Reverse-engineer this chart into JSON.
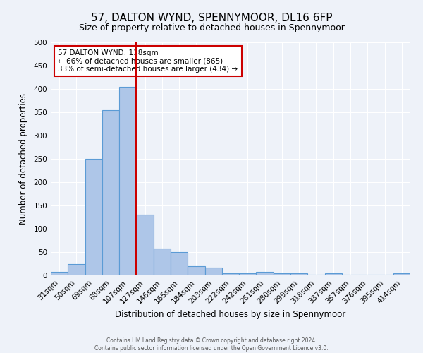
{
  "title": "57, DALTON WYND, SPENNYMOOR, DL16 6FP",
  "subtitle": "Size of property relative to detached houses in Spennymoor",
  "xlabel": "Distribution of detached houses by size in Spennymoor",
  "ylabel": "Number of detached properties",
  "categories": [
    "31sqm",
    "50sqm",
    "69sqm",
    "88sqm",
    "107sqm",
    "127sqm",
    "146sqm",
    "165sqm",
    "184sqm",
    "203sqm",
    "222sqm",
    "242sqm",
    "261sqm",
    "280sqm",
    "299sqm",
    "318sqm",
    "337sqm",
    "357sqm",
    "376sqm",
    "395sqm",
    "414sqm"
  ],
  "values": [
    7,
    25,
    250,
    355,
    405,
    130,
    58,
    50,
    20,
    16,
    5,
    4,
    7,
    5,
    5,
    1,
    4,
    1,
    1,
    1,
    4
  ],
  "bar_color": "#aec6e8",
  "bar_edge_color": "#5b9bd5",
  "vline_x_index": 4.5,
  "vline_color": "#cc0000",
  "ylim": [
    0,
    500
  ],
  "yticks": [
    0,
    50,
    100,
    150,
    200,
    250,
    300,
    350,
    400,
    450,
    500
  ],
  "annotation_text": "57 DALTON WYND: 118sqm\n← 66% of detached houses are smaller (865)\n33% of semi-detached houses are larger (434) →",
  "annotation_box_color": "#ffffff",
  "annotation_box_edge_color": "#cc0000",
  "footnote1": "Contains HM Land Registry data © Crown copyright and database right 2024.",
  "footnote2": "Contains public sector information licensed under the Open Government Licence v3.0.",
  "background_color": "#eef2f9",
  "grid_color": "#ffffff",
  "title_fontsize": 11,
  "subtitle_fontsize": 9,
  "xlabel_fontsize": 8.5,
  "ylabel_fontsize": 8.5,
  "tick_fontsize": 7.5,
  "annotation_fontsize": 7.5,
  "footnote_fontsize": 5.5
}
